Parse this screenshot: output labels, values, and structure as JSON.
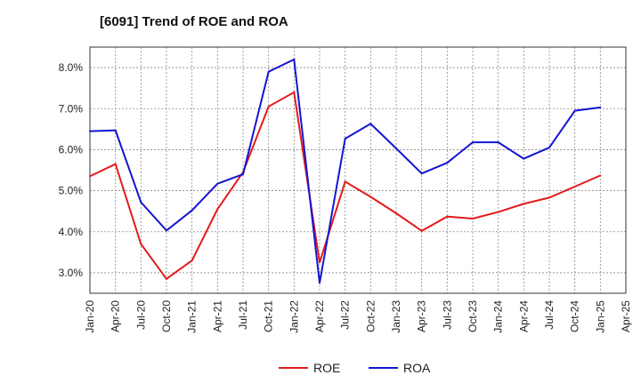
{
  "title": "[6091]  Trend of ROE and ROA",
  "chart_data": {
    "type": "line",
    "title": "[6091]  Trend of ROE and ROA",
    "xlabel": "",
    "ylabel": "",
    "ylim": [
      2.5,
      8.5
    ],
    "yticks": [
      3.0,
      4.0,
      5.0,
      6.0,
      7.0,
      8.0
    ],
    "ytick_labels": [
      "3.0%",
      "4.0%",
      "5.0%",
      "6.0%",
      "7.0%",
      "8.0%"
    ],
    "categories": [
      "Jan-20",
      "Apr-20",
      "Jul-20",
      "Oct-20",
      "Jan-21",
      "Apr-21",
      "Jul-21",
      "Oct-21",
      "Jan-22",
      "Apr-22",
      "Jul-22",
      "Oct-22",
      "Jan-23",
      "Apr-23",
      "Jul-23",
      "Oct-23",
      "Jan-24",
      "Apr-24",
      "Jul-24",
      "Oct-24",
      "Jan-25",
      "Apr-25"
    ],
    "grid": true,
    "legend_position": "bottom",
    "series": [
      {
        "name": "ROE",
        "color": "#e31a1c",
        "values": [
          5.35,
          5.65,
          3.7,
          2.85,
          3.3,
          4.55,
          5.45,
          7.05,
          7.4,
          3.25,
          5.22,
          4.85,
          4.45,
          4.02,
          4.37,
          4.32,
          4.48,
          4.68,
          4.83,
          5.1,
          5.37,
          null
        ]
      },
      {
        "name": "ROA",
        "color": "#1515d0",
        "values": [
          6.45,
          6.47,
          4.72,
          4.03,
          4.52,
          5.17,
          5.4,
          7.9,
          8.2,
          2.75,
          6.27,
          6.63,
          6.03,
          5.42,
          5.68,
          6.18,
          6.18,
          5.78,
          6.05,
          6.95,
          7.03,
          null
        ]
      }
    ]
  }
}
